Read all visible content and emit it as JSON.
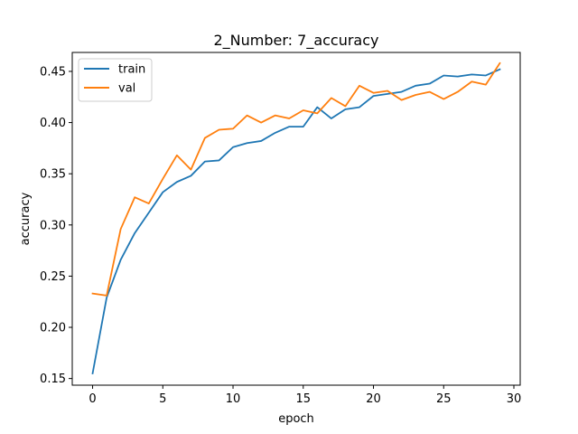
{
  "chart_data": {
    "type": "line",
    "title": "2_Number: 7_accuracy",
    "xlabel": "epoch",
    "ylabel": "accuracy",
    "xlim": [
      -1.45,
      30.45
    ],
    "ylim": [
      0.1435,
      0.4685
    ],
    "xticks": [
      0,
      5,
      10,
      15,
      20,
      25,
      30
    ],
    "yticks": [
      0.15,
      0.2,
      0.25,
      0.3,
      0.35,
      0.4,
      0.45
    ],
    "ytick_labels": [
      "0.15",
      "0.20",
      "0.25",
      "0.30",
      "0.35",
      "0.40",
      "0.45"
    ],
    "grid": false,
    "legend_position": "top-left",
    "x": [
      0,
      1,
      2,
      3,
      4,
      5,
      6,
      7,
      8,
      9,
      10,
      11,
      12,
      13,
      14,
      15,
      16,
      17,
      18,
      19,
      20,
      21,
      22,
      23,
      24,
      25,
      26,
      27,
      28,
      29
    ],
    "series": [
      {
        "name": "train",
        "color": "#1f77b4",
        "values": [
          0.155,
          0.229,
          0.266,
          0.292,
          0.312,
          0.332,
          0.342,
          0.348,
          0.362,
          0.363,
          0.376,
          0.38,
          0.382,
          0.39,
          0.396,
          0.396,
          0.415,
          0.404,
          0.413,
          0.415,
          0.426,
          0.428,
          0.43,
          0.436,
          0.438,
          0.446,
          0.445,
          0.447,
          0.446,
          0.452
        ]
      },
      {
        "name": "val",
        "color": "#ff7f0e",
        "values": [
          0.233,
          0.231,
          0.296,
          0.327,
          0.321,
          0.345,
          0.368,
          0.354,
          0.385,
          0.393,
          0.394,
          0.407,
          0.4,
          0.407,
          0.404,
          0.412,
          0.409,
          0.424,
          0.416,
          0.436,
          0.429,
          0.431,
          0.422,
          0.427,
          0.43,
          0.423,
          0.43,
          0.44,
          0.437,
          0.458
        ]
      }
    ]
  }
}
